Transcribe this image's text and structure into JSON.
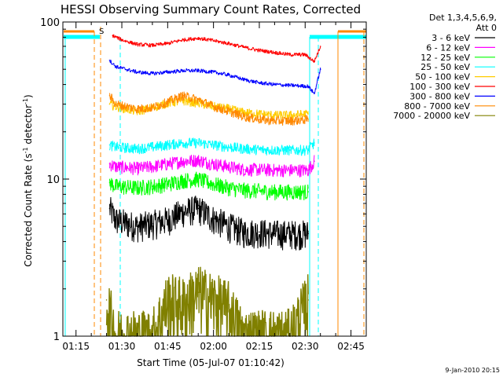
{
  "chart_data": {
    "type": "line",
    "title": "HESSI Observing Summary Count Rates, Corrected",
    "xlabel": "Start Time (05-Jul-07 01:10:42)",
    "ylabel": "Corrected Count Rate (s",
    "ylabel_sup1": "-1",
    "ylabel_mid": " detector",
    "ylabel_sup2": "-1",
    "ylabel_end": ")",
    "yscale": "log",
    "ylim": [
      1,
      100
    ],
    "xlim_minutes": [
      70.7,
      170
    ],
    "x_tick_labels": [
      "01:15",
      "01:30",
      "01:45",
      "02:00",
      "02:15",
      "02:30",
      "02:45"
    ],
    "x_ticks_minutes": [
      75,
      90,
      105,
      120,
      135,
      150,
      165
    ],
    "y_tick_labels": [
      "1",
      "10",
      "100"
    ],
    "y_ticks": [
      1,
      10,
      100
    ],
    "legend_header": [
      "Det 1,3,4,5,6,9,",
      "Att 0"
    ],
    "legend_position": "right",
    "series": [
      {
        "name": "3 - 6 keV",
        "color": "#000000",
        "x": [
          86,
          88,
          95,
          100,
          105,
          110,
          115,
          120,
          125,
          130,
          135,
          140,
          145,
          151
        ],
        "y": [
          6.5,
          5.5,
          5.0,
          5.2,
          5.5,
          6.2,
          6.5,
          5.6,
          5.0,
          4.6,
          4.6,
          4.5,
          4.5,
          4.5
        ]
      },
      {
        "name": "6 - 12 keV",
        "color": "#ff00ff",
        "x": [
          86,
          88,
          95,
          100,
          105,
          110,
          115,
          120,
          125,
          130,
          135,
          140,
          145,
          151,
          153
        ],
        "y": [
          12.5,
          12.0,
          11.7,
          12.0,
          12.5,
          13.0,
          13.2,
          12.5,
          12.0,
          11.5,
          11.5,
          11.4,
          11.4,
          11.4,
          13
        ]
      },
      {
        "name": "12 - 25 keV",
        "color": "#00ff00",
        "x": [
          86,
          88,
          95,
          100,
          105,
          110,
          115,
          120,
          125,
          130,
          135,
          140,
          145,
          151
        ],
        "y": [
          9.5,
          9.0,
          8.8,
          9.0,
          9.3,
          9.8,
          10.0,
          9.3,
          8.8,
          8.5,
          8.4,
          8.3,
          8.3,
          8.3
        ]
      },
      {
        "name": "25 - 50 keV",
        "color": "#00ffff",
        "x": [
          86,
          88,
          95,
          100,
          105,
          110,
          115,
          120,
          125,
          130,
          135,
          140,
          145,
          151,
          153
        ],
        "y": [
          16.5,
          16.0,
          15.6,
          16.0,
          16.5,
          17.0,
          17.0,
          16.5,
          16.0,
          15.6,
          15.4,
          15.3,
          15.3,
          15.3,
          17
        ]
      },
      {
        "name": "50 - 100 keV",
        "color": "#ffcc00",
        "x": [
          86,
          88,
          95,
          100,
          105,
          110,
          115,
          120,
          125,
          130,
          135,
          140,
          145,
          151
        ],
        "y": [
          30,
          29,
          27,
          28.5,
          30.5,
          31.5,
          30.5,
          29,
          28,
          26.5,
          26,
          25.5,
          25.5,
          26
        ]
      },
      {
        "name": "100 - 300 keV",
        "color": "#ff0000",
        "x": [
          87,
          90,
          95,
          100,
          105,
          110,
          115,
          120,
          125,
          130,
          135,
          140,
          145,
          150,
          153,
          155
        ],
        "y": [
          82,
          77,
          72,
          71,
          73,
          77,
          79,
          76,
          73,
          69,
          66,
          64,
          62,
          62,
          56,
          70
        ]
      },
      {
        "name": "300 - 800 keV",
        "color": "#0000ff",
        "x": [
          86,
          88,
          95,
          100,
          105,
          110,
          115,
          120,
          125,
          130,
          135,
          140,
          145,
          151,
          153,
          155
        ],
        "y": [
          57,
          52,
          48,
          47,
          48,
          49,
          49,
          48,
          46,
          43,
          41,
          40,
          39.5,
          39,
          35,
          50
        ]
      },
      {
        "name": "800 - 7000 keV",
        "color": "#ff8800",
        "x": [
          86,
          88,
          95,
          100,
          105,
          110,
          115,
          120,
          125,
          130,
          135,
          140,
          145,
          151
        ],
        "y": [
          34,
          30,
          28,
          28.5,
          31,
          34,
          32,
          29,
          27,
          25,
          24,
          23.5,
          23.5,
          24
        ]
      },
      {
        "name": "7000 - 20000 keV",
        "color": "#808000",
        "x": [
          85,
          88,
          95,
          100,
          105,
          110,
          115,
          120,
          125,
          130,
          135,
          140,
          145,
          151
        ],
        "y": [
          1.7,
          1.0,
          1.0,
          1.0,
          1.7,
          1.6,
          1.9,
          1.7,
          1.5,
          1.0,
          1.0,
          1.0,
          1.0,
          1.7
        ]
      }
    ],
    "annotations": [
      {
        "label": "S",
        "color": "#ff8800"
      }
    ],
    "footer_date": "9-Jan-2010 20:15"
  }
}
